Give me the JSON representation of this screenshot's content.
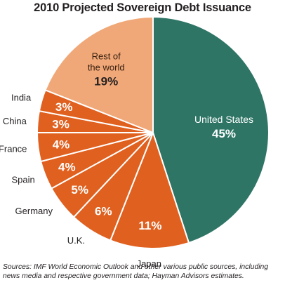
{
  "chart_data": {
    "type": "pie",
    "title": "2010 Projected Sovereign Debt Issuance",
    "slices": [
      {
        "label": "United States",
        "value": 45,
        "value_label": "45%",
        "color": "#2e7566"
      },
      {
        "label": "Japan",
        "value": 11,
        "value_label": "11%",
        "color": "#e0601f"
      },
      {
        "label": "U.K.",
        "value": 6,
        "value_label": "6%",
        "color": "#e0601f"
      },
      {
        "label": "Germany",
        "value": 5,
        "value_label": "5%",
        "color": "#e0601f"
      },
      {
        "label": "Spain",
        "value": 4,
        "value_label": "4%",
        "color": "#e0601f"
      },
      {
        "label": "France",
        "value": 4,
        "value_label": "4%",
        "color": "#e0601f"
      },
      {
        "label": "China",
        "value": 3,
        "value_label": "3%",
        "color": "#e0601f"
      },
      {
        "label": "India",
        "value": 3,
        "value_label": "3%",
        "color": "#e0601f"
      },
      {
        "label": "Rest of the world",
        "label_lines": [
          "Rest of",
          "the world"
        ],
        "value": 19,
        "value_label": "19%",
        "color": "#f0a878"
      }
    ]
  },
  "source_note": "Sources:  IMF World Economic Outlook and other various public sources, including news media and respective government data; Hayman Advisors estimates."
}
